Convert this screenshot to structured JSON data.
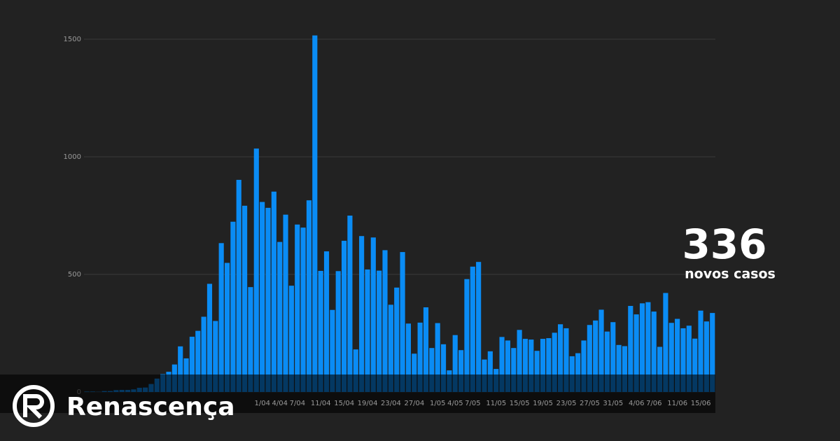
{
  "chart_data": {
    "type": "bar",
    "categories": [
      null,
      null,
      null,
      null,
      null,
      null,
      null,
      null,
      null,
      null,
      null,
      null,
      null,
      null,
      null,
      null,
      null,
      null,
      null,
      null,
      null,
      null,
      null,
      null,
      null,
      null,
      null,
      null,
      null,
      null,
      "1/04",
      null,
      null,
      "4/04",
      null,
      null,
      "7/04",
      null,
      null,
      null,
      "11/04",
      null,
      null,
      null,
      "15/04",
      null,
      null,
      null,
      "19/04",
      null,
      null,
      null,
      "23/04",
      null,
      null,
      null,
      "27/04",
      null,
      null,
      null,
      "1/05",
      null,
      null,
      "4/05",
      null,
      null,
      "7/05",
      null,
      null,
      null,
      "11/05",
      null,
      null,
      null,
      "15/05",
      null,
      null,
      null,
      "19/05",
      null,
      null,
      null,
      "23/05",
      null,
      null,
      null,
      "27/05",
      null,
      null,
      null,
      "31/05",
      null,
      null,
      null,
      "4/06",
      null,
      null,
      "7/06",
      null,
      null,
      null,
      "11/06",
      null,
      null,
      null,
      "15/06",
      null,
      null
    ],
    "values": [
      2,
      2,
      1,
      4,
      4,
      8,
      9,
      9,
      11,
      18,
      19,
      34,
      57,
      76,
      86,
      117,
      194,
      143,
      235,
      260,
      320,
      460,
      302,
      633,
      549,
      724,
      902,
      792,
      446,
      1035,
      808,
      783,
      852,
      638,
      754,
      452,
      712,
      699,
      815,
      1516,
      515,
      598,
      349,
      514,
      643,
      750,
      181,
      663,
      521,
      657,
      516,
      603,
      371,
      444,
      595,
      291,
      163,
      295,
      360,
      187,
      293,
      203,
      92,
      242,
      178,
      480,
      533,
      553,
      138,
      173,
      98,
      234,
      219,
      187,
      264,
      226,
      223,
      175,
      226,
      229,
      252,
      288,
      271,
      152,
      165,
      219,
      285,
      304,
      350,
      257,
      297,
      200,
      195,
      366,
      330,
      377,
      382,
      342,
      192,
      421,
      294,
      311,
      271,
      282,
      227,
      346,
      300,
      336
    ],
    "color": "#0a8cf5",
    "ylim": [
      0,
      1500
    ],
    "yticks": [
      0,
      500,
      1000,
      1500
    ],
    "grid": true,
    "annotations": [
      "336",
      "novos casos"
    ]
  },
  "brand": "Renascença"
}
